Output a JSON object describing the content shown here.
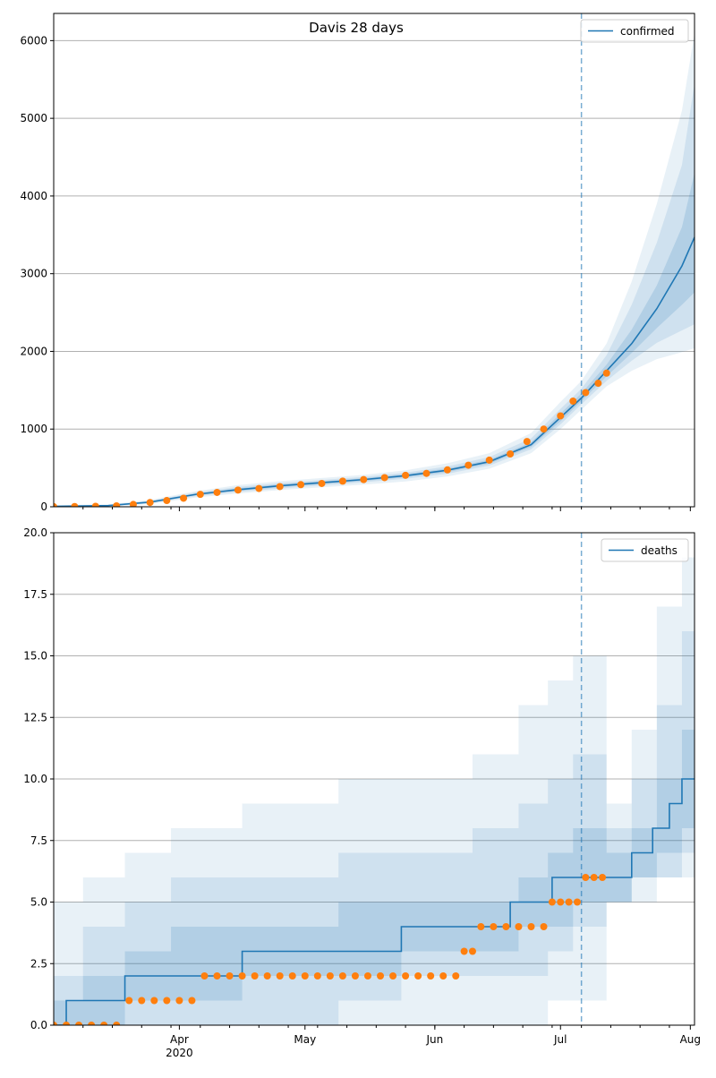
{
  "figure": {
    "title": "Davis 28 days"
  },
  "colors": {
    "model_line": "#1f77b4",
    "band_fill": "#1f77b4",
    "observed": "#ff7f0e",
    "grid": "#b0b0b0",
    "vline": "#1f77b4"
  },
  "chart_data": [
    {
      "type": "line",
      "title": "Davis 28 days",
      "xlabel": "",
      "ylabel": "",
      "x_axis_type": "date",
      "xlim": [
        "2020-03-02",
        "2020-08-02"
      ],
      "ylim": [
        0,
        6350
      ],
      "yticks": [
        0,
        1000,
        2000,
        3000,
        4000,
        5000,
        6000
      ],
      "ytick_labels": [
        "0",
        "1000",
        "2000",
        "3000",
        "4000",
        "5000",
        "6000"
      ],
      "xticks": [
        "2020-04-01",
        "2020-05-01",
        "2020-06-01",
        "2020-07-01",
        "2020-08-01"
      ],
      "xtick_labels": [
        "",
        "",
        "",
        "",
        ""
      ],
      "grid": "horizontal",
      "legend": {
        "placement": "top-right",
        "entries": [
          "confirmed"
        ]
      },
      "forecast_start": "2020-07-06",
      "series": [
        {
          "name": "confirmed",
          "kind": "model",
          "x": [
            "2020-03-02",
            "2020-03-15",
            "2020-03-25",
            "2020-04-05",
            "2020-04-15",
            "2020-04-25",
            "2020-05-05",
            "2020-05-15",
            "2020-05-25",
            "2020-06-04",
            "2020-06-14",
            "2020-06-24",
            "2020-07-01",
            "2020-07-06",
            "2020-07-12",
            "2020-07-18",
            "2020-07-24",
            "2020-07-30",
            "2020-08-02"
          ],
          "values": [
            5,
            15,
            60,
            160,
            220,
            270,
            310,
            350,
            400,
            470,
            580,
            800,
            1150,
            1400,
            1750,
            2100,
            2550,
            3100,
            3470
          ]
        },
        {
          "kind": "band-outer",
          "x": [
            "2020-03-02",
            "2020-03-15",
            "2020-03-25",
            "2020-04-05",
            "2020-04-15",
            "2020-04-25",
            "2020-05-05",
            "2020-05-15",
            "2020-05-25",
            "2020-06-04",
            "2020-06-14",
            "2020-06-24",
            "2020-07-01",
            "2020-07-06",
            "2020-07-12",
            "2020-07-18",
            "2020-07-24",
            "2020-07-30",
            "2020-08-02"
          ],
          "lower": [
            0,
            5,
            35,
            120,
            170,
            215,
            250,
            285,
            325,
            390,
            490,
            690,
            1000,
            1250,
            1550,
            1750,
            1900,
            1990,
            2040
          ],
          "upper": [
            20,
            30,
            90,
            200,
            280,
            330,
            370,
            410,
            470,
            560,
            690,
            950,
            1350,
            1620,
            2100,
            2900,
            3900,
            5100,
            6100
          ]
        },
        {
          "kind": "band-mid",
          "x": [
            "2020-03-02",
            "2020-03-15",
            "2020-03-25",
            "2020-04-05",
            "2020-04-15",
            "2020-04-25",
            "2020-05-05",
            "2020-05-15",
            "2020-05-25",
            "2020-06-04",
            "2020-06-14",
            "2020-06-24",
            "2020-07-01",
            "2020-07-06",
            "2020-07-12",
            "2020-07-18",
            "2020-07-24",
            "2020-07-30",
            "2020-08-02"
          ],
          "lower": [
            1,
            9,
            45,
            135,
            190,
            235,
            275,
            315,
            360,
            425,
            530,
            740,
            1060,
            1320,
            1620,
            1880,
            2110,
            2270,
            2350
          ],
          "upper": [
            12,
            22,
            75,
            185,
            255,
            305,
            345,
            385,
            440,
            520,
            640,
            880,
            1260,
            1520,
            1950,
            2600,
            3400,
            4400,
            5450
          ]
        },
        {
          "kind": "band-inner",
          "x": [
            "2020-03-02",
            "2020-03-15",
            "2020-03-25",
            "2020-04-05",
            "2020-04-15",
            "2020-04-25",
            "2020-05-05",
            "2020-05-15",
            "2020-05-25",
            "2020-06-04",
            "2020-06-14",
            "2020-06-24",
            "2020-07-01",
            "2020-07-06",
            "2020-07-12",
            "2020-07-18",
            "2020-07-24",
            "2020-07-30",
            "2020-08-02"
          ],
          "lower": [
            3,
            12,
            52,
            148,
            205,
            252,
            292,
            332,
            380,
            447,
            555,
            770,
            1100,
            1360,
            1680,
            1980,
            2300,
            2600,
            2760
          ],
          "upper": [
            8,
            18,
            68,
            172,
            238,
            288,
            328,
            368,
            420,
            493,
            605,
            830,
            1200,
            1460,
            1830,
            2280,
            2850,
            3600,
            4300
          ]
        },
        {
          "name": "observed",
          "kind": "observed",
          "x": [
            "2020-03-02",
            "2020-03-07",
            "2020-03-12",
            "2020-03-17",
            "2020-03-21",
            "2020-03-25",
            "2020-03-29",
            "2020-04-02",
            "2020-04-06",
            "2020-04-10",
            "2020-04-15",
            "2020-04-20",
            "2020-04-25",
            "2020-04-30",
            "2020-05-05",
            "2020-05-10",
            "2020-05-15",
            "2020-05-20",
            "2020-05-25",
            "2020-05-30",
            "2020-06-04",
            "2020-06-09",
            "2020-06-14",
            "2020-06-19",
            "2020-06-23",
            "2020-06-27",
            "2020-07-01",
            "2020-07-04",
            "2020-07-07",
            "2020-07-10",
            "2020-07-12"
          ],
          "values": [
            1,
            3,
            6,
            12,
            30,
            55,
            80,
            110,
            160,
            185,
            215,
            235,
            260,
            285,
            300,
            330,
            350,
            375,
            405,
            430,
            475,
            535,
            600,
            680,
            840,
            1000,
            1170,
            1360,
            1470,
            1590,
            1720
          ]
        }
      ]
    },
    {
      "type": "line",
      "title": "",
      "xlabel": "",
      "ylabel": "",
      "x_axis_type": "date",
      "xlim": [
        "2020-03-02",
        "2020-08-02"
      ],
      "ylim": [
        0,
        20
      ],
      "yticks": [
        0,
        2.5,
        5,
        7.5,
        10,
        12.5,
        15,
        17.5,
        20
      ],
      "ytick_labels": [
        "0.0",
        "2.5",
        "5.0",
        "7.5",
        "10.0",
        "12.5",
        "15.0",
        "17.5",
        "20.0"
      ],
      "xticks": [
        "2020-04-01",
        "2020-05-01",
        "2020-06-01",
        "2020-07-01",
        "2020-08-01"
      ],
      "xtick_labels": [
        "Apr\n2020",
        "May",
        "Jun",
        "Jul",
        "Aug"
      ],
      "grid": "horizontal",
      "legend": {
        "placement": "top-right",
        "entries": [
          "deaths"
        ]
      },
      "forecast_start": "2020-07-06",
      "series": [
        {
          "name": "deaths",
          "kind": "model-step",
          "x": [
            "2020-03-02",
            "2020-03-05",
            "2020-03-19",
            "2020-04-16",
            "2020-05-24",
            "2020-06-19",
            "2020-06-29",
            "2020-07-10",
            "2020-07-18",
            "2020-07-23",
            "2020-07-27",
            "2020-07-30",
            "2020-08-02"
          ],
          "values": [
            0,
            1,
            2,
            3,
            4,
            5,
            6,
            6,
            7,
            8,
            9,
            10,
            10
          ]
        },
        {
          "kind": "band-outer",
          "x": [
            "2020-03-02",
            "2020-03-09",
            "2020-03-19",
            "2020-03-30",
            "2020-04-16",
            "2020-05-09",
            "2020-05-24",
            "2020-06-10",
            "2020-06-21",
            "2020-06-28",
            "2020-07-04",
            "2020-07-12",
            "2020-07-18",
            "2020-07-24",
            "2020-07-30",
            "2020-08-02"
          ],
          "lower": [
            0,
            0,
            0,
            0,
            0,
            0,
            0,
            0,
            0,
            1,
            1,
            5,
            5,
            6,
            6,
            6
          ],
          "upper": [
            5,
            6,
            7,
            8,
            9,
            10,
            10,
            11,
            13,
            14,
            15,
            9,
            12,
            17,
            19,
            20
          ]
        },
        {
          "kind": "band-mid",
          "x": [
            "2020-03-02",
            "2020-03-09",
            "2020-03-19",
            "2020-03-30",
            "2020-04-16",
            "2020-05-09",
            "2020-05-24",
            "2020-06-10",
            "2020-06-21",
            "2020-06-28",
            "2020-07-04",
            "2020-07-12",
            "2020-07-18",
            "2020-07-24",
            "2020-07-30",
            "2020-08-02"
          ],
          "lower": [
            0,
            0,
            0,
            0,
            0,
            1,
            2,
            2,
            2,
            3,
            4,
            5,
            6,
            6,
            7,
            8
          ],
          "upper": [
            2,
            4,
            5,
            6,
            6,
            7,
            7,
            8,
            9,
            10,
            11,
            8,
            10,
            13,
            16,
            17
          ]
        },
        {
          "kind": "band-inner",
          "x": [
            "2020-03-02",
            "2020-03-09",
            "2020-03-19",
            "2020-03-30",
            "2020-04-16",
            "2020-05-09",
            "2020-05-24",
            "2020-06-10",
            "2020-06-21",
            "2020-06-28",
            "2020-07-04",
            "2020-07-12",
            "2020-07-18",
            "2020-07-24",
            "2020-07-30",
            "2020-08-02"
          ],
          "lower": [
            0,
            0,
            1,
            1,
            2,
            2,
            3,
            3,
            4,
            4,
            5,
            5,
            6,
            7,
            8,
            9
          ],
          "upper": [
            1,
            2,
            3,
            4,
            4,
            5,
            5,
            5,
            6,
            7,
            8,
            7,
            8,
            10,
            12,
            13
          ]
        },
        {
          "name": "observed",
          "kind": "observed",
          "x": [
            "2020-03-02",
            "2020-03-05",
            "2020-03-08",
            "2020-03-11",
            "2020-03-14",
            "2020-03-17",
            "2020-03-20",
            "2020-03-23",
            "2020-03-26",
            "2020-03-29",
            "2020-04-01",
            "2020-04-04",
            "2020-04-07",
            "2020-04-10",
            "2020-04-13",
            "2020-04-16",
            "2020-04-19",
            "2020-04-22",
            "2020-04-25",
            "2020-04-28",
            "2020-05-01",
            "2020-05-04",
            "2020-05-07",
            "2020-05-10",
            "2020-05-13",
            "2020-05-16",
            "2020-05-19",
            "2020-05-22",
            "2020-05-25",
            "2020-05-28",
            "2020-05-31",
            "2020-06-03",
            "2020-06-06",
            "2020-06-08",
            "2020-06-10",
            "2020-06-12",
            "2020-06-15",
            "2020-06-18",
            "2020-06-21",
            "2020-06-24",
            "2020-06-27",
            "2020-06-29",
            "2020-07-01",
            "2020-07-03",
            "2020-07-05",
            "2020-07-07",
            "2020-07-09",
            "2020-07-11"
          ],
          "values": [
            0,
            0,
            0,
            0,
            0,
            0,
            1,
            1,
            1,
            1,
            1,
            1,
            2,
            2,
            2,
            2,
            2,
            2,
            2,
            2,
            2,
            2,
            2,
            2,
            2,
            2,
            2,
            2,
            2,
            2,
            2,
            2,
            2,
            3,
            3,
            4,
            4,
            4,
            4,
            4,
            4,
            5,
            5,
            5,
            5,
            6,
            6,
            6
          ]
        }
      ]
    }
  ]
}
